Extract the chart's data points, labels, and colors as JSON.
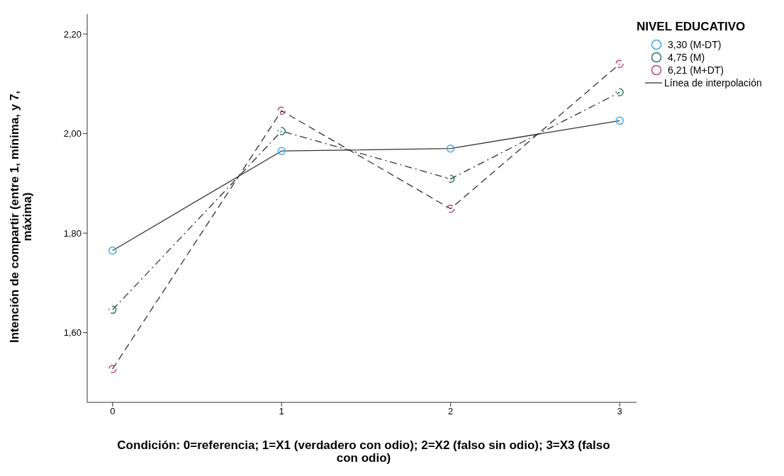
{
  "chart_data": {
    "type": "line",
    "xlabel": "Condición: 0=referencia; 1=X1 (verdadero con odio); 2=X2 (falso sin odio); 3=X3 (falso con odio)",
    "ylabel": "Intención de compartir (entre 1, mínima, y 7, máxima)",
    "legend_title": "NIVEL EDUCATIVO",
    "annotations": [
      "Línea de interpolación"
    ],
    "x": [
      0,
      1,
      2,
      3
    ],
    "series": [
      {
        "name": "3,30 (M-DT)",
        "color": "#3fa9e8",
        "line_style": "solid",
        "values": [
          1.765,
          1.965,
          1.97,
          2.026
        ]
      },
      {
        "name": "4,75 (M)",
        "color": "#2a7a6e",
        "line_style": "dotted",
        "values": [
          1.646,
          2.005,
          1.909,
          2.083
        ]
      },
      {
        "name": "6,21 (M+DT)",
        "color": "#c2466e",
        "line_style": "dashed",
        "values": [
          1.527,
          2.046,
          1.849,
          2.14
        ]
      }
    ],
    "xlim": [
      -0.15,
      3.1
    ],
    "xticks": [
      0,
      1,
      2,
      3
    ],
    "ylim": [
      1.46,
      2.24
    ],
    "yticks": [
      {
        "value": 1.6,
        "label": "1,60"
      },
      {
        "value": 1.8,
        "label": "1,80"
      },
      {
        "value": 2.0,
        "label": "2,00"
      },
      {
        "value": 2.2,
        "label": "2,20"
      }
    ],
    "grid": false,
    "legend": "top right",
    "marker": "circle"
  }
}
